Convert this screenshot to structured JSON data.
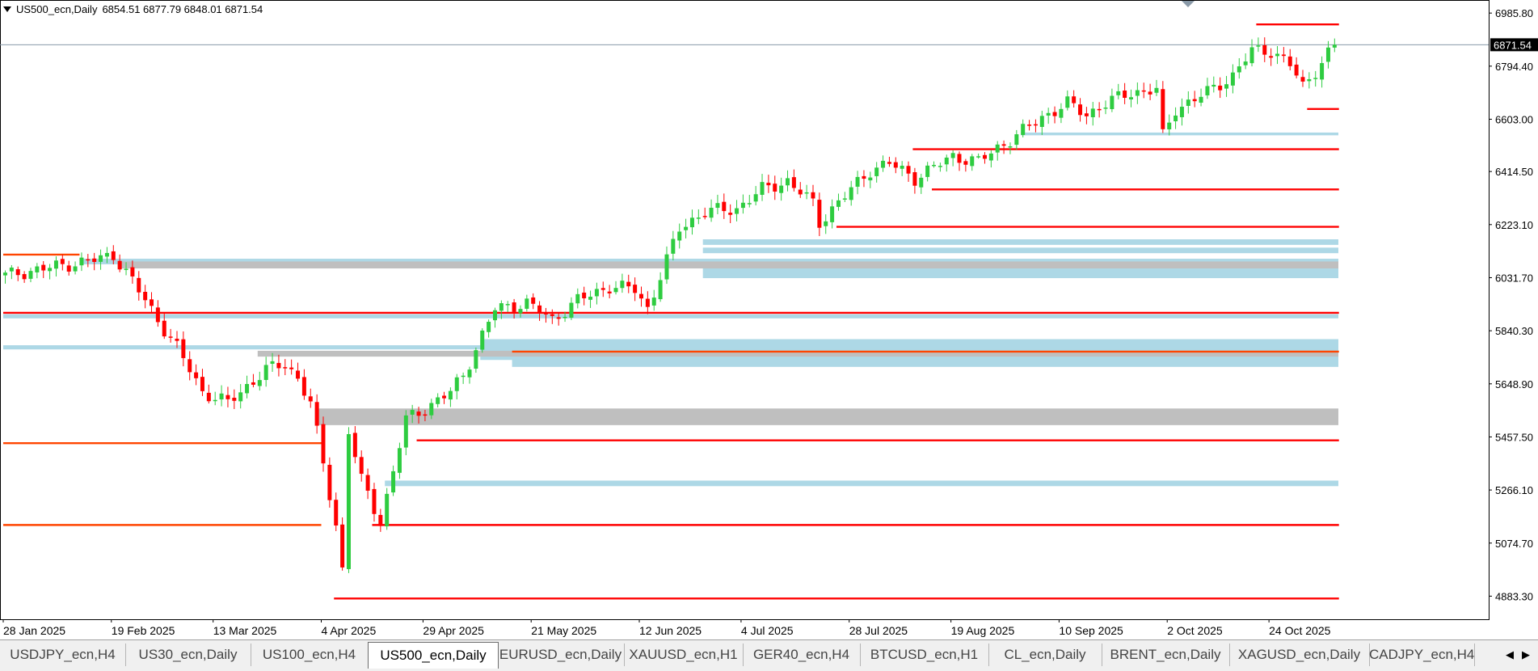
{
  "header": {
    "symbol": "US500_ecn,Daily",
    "ohlc": "6854.51 6877.79 6848.01 6871.54"
  },
  "price_axis": {
    "labels": [
      "6985.80",
      "6794.40",
      "6603.00",
      "6414.50",
      "6223.10",
      "6031.70",
      "5840.30",
      "5648.90",
      "5457.50",
      "5266.10",
      "5074.70",
      "4883.30"
    ],
    "current_price": "6871.54"
  },
  "time_axis": {
    "labels": [
      "28 Jan 2025",
      "19 Feb 2025",
      "13 Mar 2025",
      "4 Apr 2025",
      "29 Apr 2025",
      "21 May 2025",
      "12 Jun 2025",
      "4 Jul 2025",
      "28 Jul 2025",
      "19 Aug 2025",
      "10 Sep 2025",
      "2 Oct 2025",
      "24 Oct 2025"
    ]
  },
  "tabs": [
    {
      "label": "USDJPY_ecn,H4"
    },
    {
      "label": "US30_ecn,Daily"
    },
    {
      "label": "US100_ecn,H4"
    },
    {
      "label": "US500_ecn,Daily",
      "active": true
    },
    {
      "label": "EURUSD_ecn,Daily"
    },
    {
      "label": "XAUUSD_ecn,H1"
    },
    {
      "label": "GER40_ecn,H4"
    },
    {
      "label": "BTCUSD_ecn,H1"
    },
    {
      "label": "CL_ecn,Daily"
    },
    {
      "label": "BRENT_ecn,Daily"
    },
    {
      "label": "XAGUSD_ecn,Daily"
    },
    {
      "label": "CADJPY_ecn,H4"
    }
  ],
  "colors": {
    "bull": "#2ecc40",
    "bear": "#ff0000",
    "red_level": "#ff0000",
    "orange_level": "#ff4500",
    "blue_zone": "#add8e6",
    "gray_zone": "#bfbfbf",
    "current_price_bg": "#000000"
  },
  "icons": {
    "symbol_menu": "triangle-down-icon",
    "scroll_left": "arrow-left-icon",
    "scroll_right": "arrow-right-icon"
  },
  "chart_data": {
    "type": "candlestick",
    "symbol": "US500_ecn",
    "timeframe": "Daily",
    "y_range": [
      4800,
      7030
    ],
    "y_ticks": [
      6985.8,
      6794.4,
      6603.0,
      6414.5,
      6223.1,
      6031.7,
      5840.3,
      5648.9,
      5457.5,
      5266.1,
      5074.7,
      4883.3
    ],
    "x_ticks": [
      "28 Jan 2025",
      "19 Feb 2025",
      "13 Mar 2025",
      "4 Apr 2025",
      "29 Apr 2025",
      "21 May 2025",
      "12 Jun 2025",
      "4 Jul 2025",
      "28 Jul 2025",
      "19 Aug 2025",
      "10 Sep 2025",
      "2 Oct 2025",
      "24 Oct 2025"
    ],
    "bar_count": 210,
    "last_close": 6871.54,
    "close_anchors": [
      [
        0,
        6040
      ],
      [
        15,
        6100
      ],
      [
        17,
        6115
      ],
      [
        20,
        6020
      ],
      [
        24,
        5880
      ],
      [
        27,
        5780
      ],
      [
        31,
        5620
      ],
      [
        35,
        5580
      ],
      [
        38,
        5640
      ],
      [
        41,
        5700
      ],
      [
        44,
        5720
      ],
      [
        46,
        5670
      ],
      [
        48,
        5580
      ],
      [
        52,
        5140
      ],
      [
        53,
        4980
      ],
      [
        54,
        5480
      ],
      [
        56,
        5300
      ],
      [
        59,
        5150
      ],
      [
        63,
        5520
      ],
      [
        66,
        5560
      ],
      [
        70,
        5620
      ],
      [
        72,
        5680
      ],
      [
        77,
        5920
      ],
      [
        82,
        5940
      ],
      [
        86,
        5880
      ],
      [
        90,
        5950
      ],
      [
        95,
        6000
      ],
      [
        99,
        5990
      ],
      [
        101,
        5920
      ],
      [
        106,
        6210
      ],
      [
        110,
        6270
      ],
      [
        115,
        6280
      ],
      [
        119,
        6350
      ],
      [
        123,
        6380
      ],
      [
        127,
        6300
      ],
      [
        128,
        6230
      ],
      [
        130,
        6280
      ],
      [
        136,
        6420
      ],
      [
        139,
        6445
      ],
      [
        143,
        6390
      ],
      [
        146,
        6430
      ],
      [
        149,
        6470
      ],
      [
        153,
        6450
      ],
      [
        156,
        6500
      ],
      [
        160,
        6560
      ],
      [
        163,
        6610
      ],
      [
        167,
        6660
      ],
      [
        170,
        6620
      ],
      [
        173,
        6660
      ],
      [
        177,
        6700
      ],
      [
        181,
        6710
      ],
      [
        182,
        6540
      ],
      [
        184,
        6640
      ],
      [
        189,
        6700
      ],
      [
        193,
        6760
      ],
      [
        196,
        6850
      ],
      [
        199,
        6850
      ],
      [
        202,
        6800
      ],
      [
        204,
        6720
      ],
      [
        206,
        6780
      ],
      [
        209,
        6871.54
      ]
    ],
    "zones": [
      {
        "type": "demand",
        "from_bar": 12,
        "to_price_end": true,
        "low": 6080,
        "high": 6100
      },
      {
        "type": "demand",
        "from_bar": 0,
        "low": 5885,
        "high": 5900
      },
      {
        "type": "demand",
        "from_bar": 0,
        "low": 5773,
        "high": 5788
      },
      {
        "type": "demand",
        "from_bar": 75,
        "low": 5735,
        "high": 5810
      },
      {
        "type": "demand",
        "from_bar": 80,
        "low": 5710,
        "high": 5760
      },
      {
        "type": "demand",
        "from_bar": 60,
        "low": 5280,
        "high": 5300
      },
      {
        "type": "demand",
        "from_bar": 110,
        "low": 6030,
        "high": 6075
      },
      {
        "type": "demand",
        "from_bar": 110,
        "low": 6120,
        "high": 6140
      },
      {
        "type": "demand",
        "from_bar": 110,
        "low": 6150,
        "high": 6170
      },
      {
        "type": "demand",
        "from_bar": 160,
        "low": 6545,
        "high": 6555
      },
      {
        "type": "supply",
        "from_bar": 18,
        "low": 6065,
        "high": 6090
      },
      {
        "type": "supply",
        "from_bar": 40,
        "low": 5747,
        "high": 5768
      },
      {
        "type": "supply",
        "from_bar": 49,
        "low": 5500,
        "high": 5560
      }
    ],
    "levels": [
      {
        "price": 6115,
        "from_bar": 0,
        "to_bar": 12,
        "color": "orange"
      },
      {
        "price": 5905,
        "from_bar": 0,
        "to_bar": 210,
        "color": "red"
      },
      {
        "price": 5765,
        "from_bar": 80,
        "to_bar": 210,
        "color": "orange"
      },
      {
        "price": 5435,
        "from_bar": 0,
        "to_bar": 50,
        "color": "orange"
      },
      {
        "price": 5140,
        "from_bar": 0,
        "to_bar": 50,
        "color": "orange"
      },
      {
        "price": 5445,
        "from_bar": 65,
        "to_bar": 210,
        "color": "red"
      },
      {
        "price": 5140,
        "from_bar": 58,
        "to_bar": 210,
        "color": "red"
      },
      {
        "price": 4875,
        "from_bar": 52,
        "to_bar": 210,
        "color": "red"
      },
      {
        "price": 6215,
        "from_bar": 131,
        "to_bar": 210,
        "color": "red"
      },
      {
        "price": 6350,
        "from_bar": 146,
        "to_bar": 210,
        "color": "red"
      },
      {
        "price": 6495,
        "from_bar": 143,
        "to_bar": 210,
        "color": "red"
      },
      {
        "price": 6640,
        "from_bar": 205,
        "to_bar": 210,
        "color": "red"
      },
      {
        "price": 6945,
        "from_bar": 197,
        "to_bar": 210,
        "color": "red"
      }
    ]
  }
}
